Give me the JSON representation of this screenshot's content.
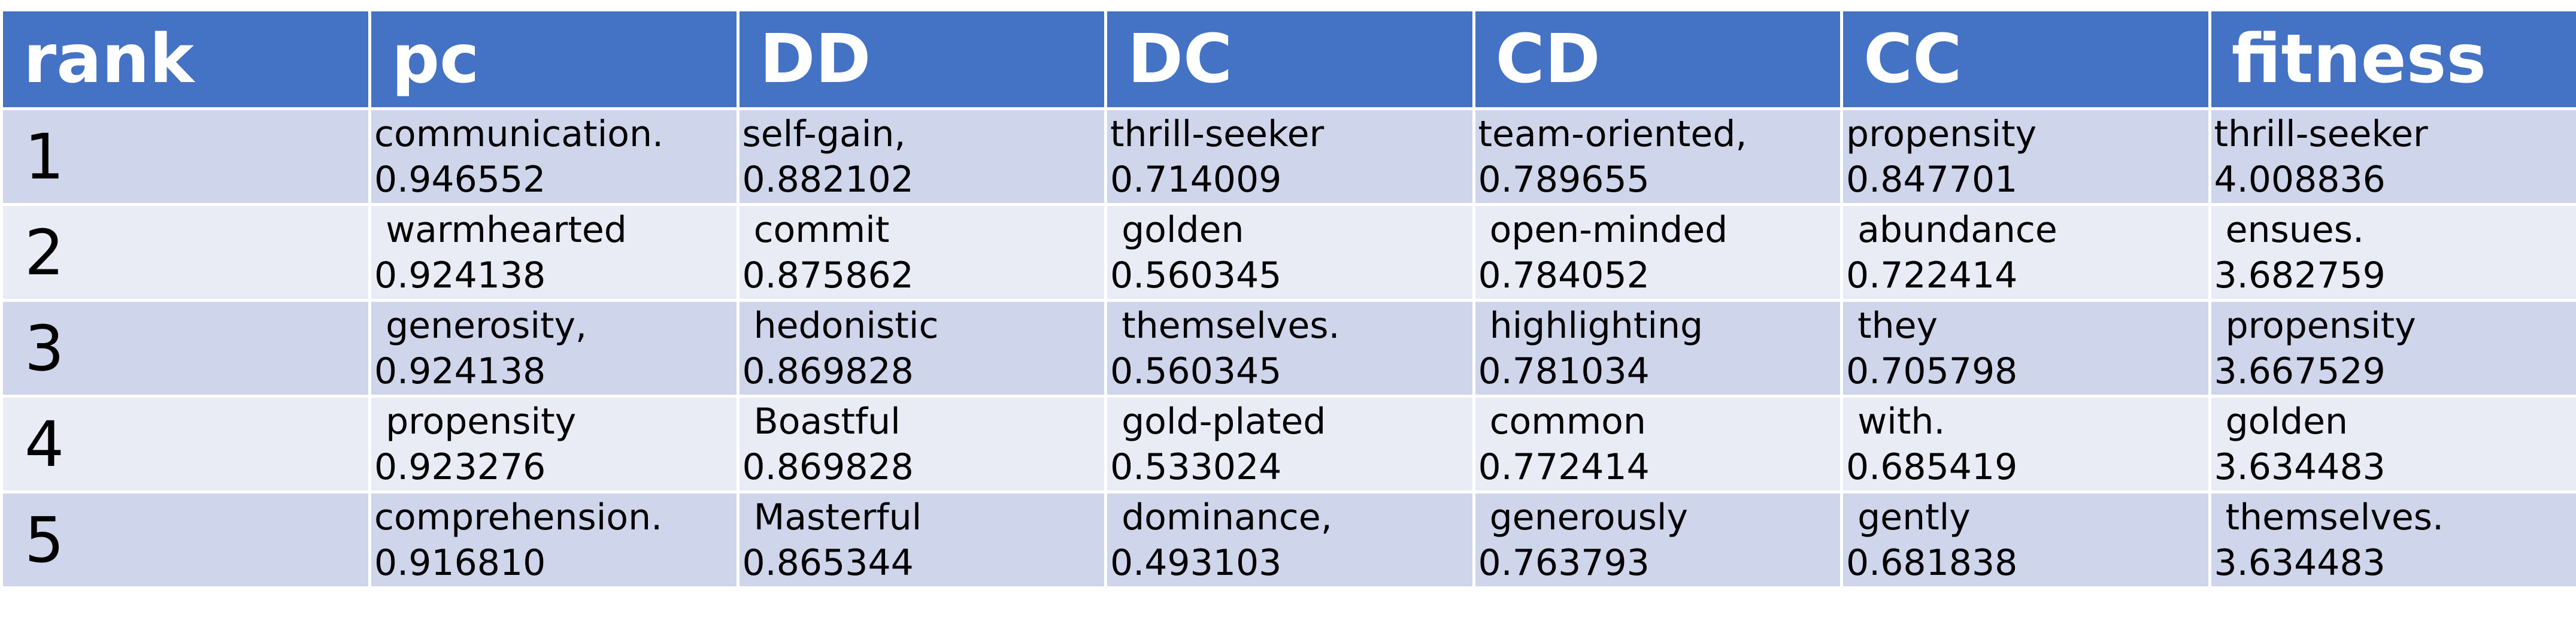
{
  "table": {
    "headers": [
      "rank",
      "pc",
      "DD",
      "DC",
      "CD",
      "CC",
      "fitness"
    ],
    "rows": [
      {
        "rank": "1",
        "cells": [
          {
            "word": "communication.",
            "score": "0.946552"
          },
          {
            "word": "self-gain,",
            "score": "0.882102"
          },
          {
            "word": "thrill-seeker",
            "score": "0.714009"
          },
          {
            "word": "team-oriented,",
            "score": "0.789655"
          },
          {
            "word": "propensity",
            "score": "0.847701"
          },
          {
            "word": "thrill-seeker",
            "score": "4.008836"
          }
        ]
      },
      {
        "rank": "2",
        "cells": [
          {
            "word": " warmhearted",
            "score": "0.924138"
          },
          {
            "word": " commit",
            "score": "0.875862"
          },
          {
            "word": " golden",
            "score": "0.560345"
          },
          {
            "word": " open-minded",
            "score": "0.784052"
          },
          {
            "word": " abundance",
            "score": "0.722414"
          },
          {
            "word": " ensues.",
            "score": "3.682759"
          }
        ]
      },
      {
        "rank": "3",
        "cells": [
          {
            "word": " generosity,",
            "score": "0.924138"
          },
          {
            "word": " hedonistic",
            "score": "0.869828"
          },
          {
            "word": " themselves.",
            "score": "0.560345"
          },
          {
            "word": " highlighting",
            "score": "0.781034"
          },
          {
            "word": " they",
            "score": "0.705798"
          },
          {
            "word": " propensity",
            "score": "3.667529"
          }
        ]
      },
      {
        "rank": "4",
        "cells": [
          {
            "word": " propensity",
            "score": "0.923276"
          },
          {
            "word": " Boastful",
            "score": "0.869828"
          },
          {
            "word": " gold-plated",
            "score": "0.533024"
          },
          {
            "word": " common",
            "score": "0.772414"
          },
          {
            "word": " with.",
            "score": "0.685419"
          },
          {
            "word": " golden",
            "score": "3.634483"
          }
        ]
      },
      {
        "rank": "5",
        "cells": [
          {
            "word": "comprehension.",
            "score": "0.916810"
          },
          {
            "word": " Masterful",
            "score": "0.865344"
          },
          {
            "word": " dominance,",
            "score": "0.493103"
          },
          {
            "word": " generously",
            "score": "0.763793"
          },
          {
            "word": " gently",
            "score": "0.681838"
          },
          {
            "word": " themselves.",
            "score": "3.634483"
          }
        ]
      }
    ]
  },
  "colors": {
    "header_bg": "#4472c4",
    "row_odd_bg": "#cfd5ea",
    "row_even_bg": "#e9ebf5"
  }
}
